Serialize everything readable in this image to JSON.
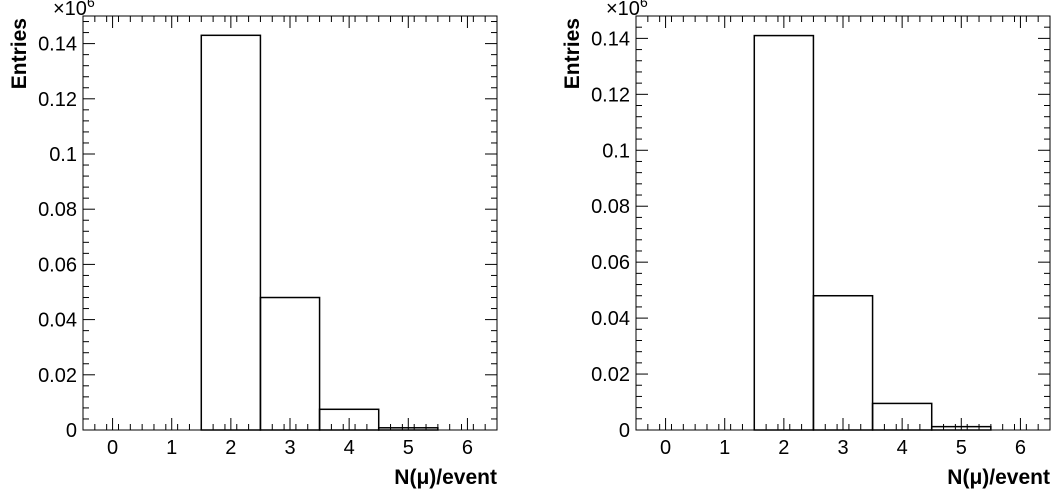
{
  "chart_data": [
    {
      "type": "bar",
      "histogram": true,
      "x_bin_centers": [
        0,
        1,
        2,
        3,
        4,
        5,
        6
      ],
      "values": [
        0,
        0,
        0.143,
        0.048,
        0.0075,
        0.0008,
        0
      ],
      "xlim": [
        -0.5,
        6.5
      ],
      "ylim": [
        0,
        0.15
      ],
      "xticks": [
        "0",
        "1",
        "2",
        "3",
        "4",
        "5",
        "6"
      ],
      "yticks": [
        "0",
        "0.02",
        "0.04",
        "0.06",
        "0.08",
        "0.1",
        "0.12",
        "0.14"
      ],
      "xlabel": "N(μ)/event",
      "ylabel": "Entries",
      "y_multiplier_base": "×10",
      "y_multiplier_exp": "6",
      "grid": false
    },
    {
      "type": "bar",
      "histogram": true,
      "x_bin_centers": [
        0,
        1,
        2,
        3,
        4,
        5,
        6
      ],
      "values": [
        0,
        0,
        0.141,
        0.048,
        0.0095,
        0.0012,
        0
      ],
      "xlim": [
        -0.5,
        6.5
      ],
      "ylim": [
        0,
        0.148
      ],
      "xticks": [
        "0",
        "1",
        "2",
        "3",
        "4",
        "5",
        "6"
      ],
      "yticks": [
        "0",
        "0.02",
        "0.04",
        "0.06",
        "0.08",
        "0.1",
        "0.12",
        "0.14"
      ],
      "xlabel": "N(μ)/event",
      "ylabel": "Entries",
      "y_multiplier_base": "×10",
      "y_multiplier_exp": "6",
      "grid": false
    }
  ]
}
